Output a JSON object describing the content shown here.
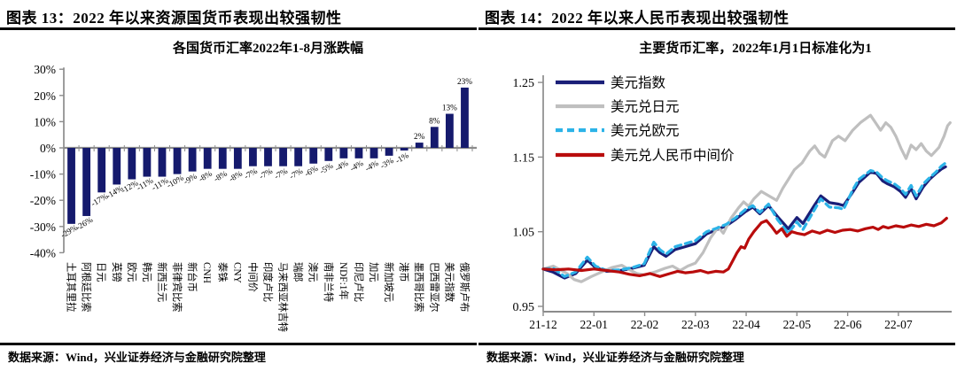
{
  "panels": [
    {
      "heading": "图表 13：2022 年以来资源国货币表现出较强韧性",
      "source": "数据来源：Wind，兴业证券经济与金融研究院整理"
    },
    {
      "heading": "图表 14：2022 年以来人民币表现出较强韧性",
      "source": "数据来源：Wind，兴业证券经济与金融研究院整理"
    }
  ],
  "chart_data": [
    {
      "type": "bar",
      "title": "各国货币汇率2022年1-8月涨跌幅",
      "unit": "%",
      "categories": [
        "土耳其里拉",
        "阿根廷比索",
        "日元",
        "英镑",
        "欧元",
        "韩元",
        "新西兰元",
        "菲律宾比索",
        "新台币",
        "CNH",
        "泰铢",
        "CNY",
        "中间价",
        "印度卢比",
        "马来西亚林吉特",
        "瑞郎",
        "澳元",
        "南非兰特",
        "NDF:1年",
        "印尼卢比",
        "加元",
        "新加坡元",
        "港币",
        "墨西哥比索",
        "巴西雷亚尔",
        "美元指数",
        "俄罗斯卢布"
      ],
      "values": [
        -29,
        -26,
        -17,
        -14,
        -12,
        -11,
        -11,
        -10,
        -9,
        -8,
        -8,
        -8,
        -7,
        -7,
        -7,
        -7,
        -6,
        -5,
        -4,
        -4,
        -4,
        -3,
        -1,
        2,
        8,
        13,
        23
      ],
      "ylim": [
        -40,
        30
      ],
      "yticks": [
        30,
        20,
        10,
        0,
        -10,
        -20,
        -30,
        -40
      ],
      "grid": false,
      "bar_color": "#151a6d",
      "axis_color": "#8c8c8c"
    },
    {
      "type": "line",
      "title": "主要货币汇率，2022年1月1日标准化为1",
      "x_tick_labels": [
        "21-12",
        "22-01",
        "22-02",
        "22-03",
        "22-04",
        "22-05",
        "22-06",
        "22-07"
      ],
      "x_unit": "months-since-2021-12",
      "x_range": [
        0,
        8.05
      ],
      "ylim": [
        0.95,
        1.25
      ],
      "yticks": [
        1.25,
        1.15,
        1.05,
        0.95
      ],
      "grid": false,
      "legend_position": "top-left",
      "axis_color": "#8c8c8c",
      "series": [
        {
          "name": "美元指数",
          "color": "#1a1f78",
          "style": "solid",
          "points": [
            [
              0,
              1.0
            ],
            [
              0.19,
              0.996
            ],
            [
              0.42,
              0.988
            ],
            [
              0.64,
              0.994
            ],
            [
              0.87,
              1.012
            ],
            [
              1.03,
              1.002
            ],
            [
              1.25,
              0.997
            ],
            [
              1.52,
              0.998
            ],
            [
              1.76,
              1.001
            ],
            [
              1.99,
              1.005
            ],
            [
              2.18,
              1.03
            ],
            [
              2.3,
              1.022
            ],
            [
              2.42,
              1.017
            ],
            [
              2.6,
              1.026
            ],
            [
              2.8,
              1.03
            ],
            [
              3.0,
              1.034
            ],
            [
              3.22,
              1.047
            ],
            [
              3.43,
              1.053
            ],
            [
              3.61,
              1.058
            ],
            [
              3.78,
              1.066
            ],
            [
              3.99,
              1.077
            ],
            [
              4.13,
              1.083
            ],
            [
              4.27,
              1.074
            ],
            [
              4.44,
              1.085
            ],
            [
              4.62,
              1.07
            ],
            [
              4.83,
              1.054
            ],
            [
              5.0,
              1.069
            ],
            [
              5.12,
              1.061
            ],
            [
              5.35,
              1.086
            ],
            [
              5.47,
              1.098
            ],
            [
              5.64,
              1.089
            ],
            [
              5.82,
              1.087
            ],
            [
              5.92,
              1.085
            ],
            [
              6.1,
              1.103
            ],
            [
              6.22,
              1.116
            ],
            [
              6.45,
              1.13
            ],
            [
              6.57,
              1.128
            ],
            [
              6.69,
              1.118
            ],
            [
              6.79,
              1.114
            ],
            [
              6.92,
              1.11
            ],
            [
              7.04,
              1.104
            ],
            [
              7.14,
              1.096
            ],
            [
              7.25,
              1.108
            ],
            [
              7.35,
              1.094
            ],
            [
              7.49,
              1.11
            ],
            [
              7.61,
              1.12
            ],
            [
              7.74,
              1.128
            ],
            [
              7.85,
              1.134
            ],
            [
              7.93,
              1.137
            ]
          ]
        },
        {
          "name": "美元兑日元",
          "color": "#bfbfbf",
          "style": "solid",
          "points": [
            [
              0,
              1.0
            ],
            [
              0.2,
              1.004
            ],
            [
              0.47,
              0.994
            ],
            [
              0.61,
              0.986
            ],
            [
              0.75,
              0.983
            ],
            [
              0.95,
              0.99
            ],
            [
              1.15,
              0.996
            ],
            [
              1.35,
              1.002
            ],
            [
              1.55,
              1.005
            ],
            [
              1.7,
              0.999
            ],
            [
              1.85,
              0.994
            ],
            [
              2.0,
              0.992
            ],
            [
              2.2,
              0.996
            ],
            [
              2.4,
              1.001
            ],
            [
              2.55,
              1.004
            ],
            [
              2.7,
              0.998
            ],
            [
              2.85,
              1.004
            ],
            [
              3.0,
              1.008
            ],
            [
              3.15,
              1.022
            ],
            [
              3.3,
              1.042
            ],
            [
              3.45,
              1.056
            ],
            [
              3.55,
              1.048
            ],
            [
              3.7,
              1.068
            ],
            [
              3.85,
              1.082
            ],
            [
              3.95,
              1.09
            ],
            [
              4.05,
              1.084
            ],
            [
              4.15,
              1.094
            ],
            [
              4.3,
              1.104
            ],
            [
              4.45,
              1.098
            ],
            [
              4.6,
              1.092
            ],
            [
              4.72,
              1.108
            ],
            [
              4.85,
              1.122
            ],
            [
              4.95,
              1.133
            ],
            [
              5.1,
              1.142
            ],
            [
              5.25,
              1.158
            ],
            [
              5.35,
              1.165
            ],
            [
              5.45,
              1.155
            ],
            [
              5.55,
              1.15
            ],
            [
              5.7,
              1.172
            ],
            [
              5.82,
              1.178
            ],
            [
              5.95,
              1.172
            ],
            [
              6.1,
              1.186
            ],
            [
              6.25,
              1.196
            ],
            [
              6.45,
              1.206
            ],
            [
              6.55,
              1.196
            ],
            [
              6.65,
              1.186
            ],
            [
              6.75,
              1.196
            ],
            [
              6.85,
              1.19
            ],
            [
              6.95,
              1.178
            ],
            [
              7.05,
              1.162
            ],
            [
              7.15,
              1.148
            ],
            [
              7.25,
              1.166
            ],
            [
              7.35,
              1.16
            ],
            [
              7.45,
              1.168
            ],
            [
              7.55,
              1.158
            ],
            [
              7.65,
              1.152
            ],
            [
              7.8,
              1.163
            ],
            [
              7.9,
              1.178
            ],
            [
              7.97,
              1.192
            ],
            [
              8.02,
              1.196
            ]
          ]
        },
        {
          "name": "美元兑欧元",
          "color": "#2cb3e8",
          "style": "dashed",
          "points": [
            [
              0,
              1.0
            ],
            [
              0.2,
              1.001
            ],
            [
              0.42,
              0.99
            ],
            [
              0.64,
              0.996
            ],
            [
              0.87,
              1.016
            ],
            [
              1.03,
              1.004
            ],
            [
              1.25,
              0.998
            ],
            [
              1.52,
              0.999
            ],
            [
              1.76,
              1.002
            ],
            [
              1.99,
              1.007
            ],
            [
              2.18,
              1.036
            ],
            [
              2.3,
              1.026
            ],
            [
              2.42,
              1.02
            ],
            [
              2.6,
              1.03
            ],
            [
              2.8,
              1.034
            ],
            [
              3.0,
              1.038
            ],
            [
              3.22,
              1.05
            ],
            [
              3.43,
              1.055
            ],
            [
              3.61,
              1.06
            ],
            [
              3.78,
              1.068
            ],
            [
              3.99,
              1.08
            ],
            [
              4.13,
              1.085
            ],
            [
              4.27,
              1.076
            ],
            [
              4.44,
              1.087
            ],
            [
              4.62,
              1.066
            ],
            [
              4.83,
              1.048
            ],
            [
              5.0,
              1.063
            ],
            [
              5.12,
              1.053
            ],
            [
              5.35,
              1.08
            ],
            [
              5.47,
              1.094
            ],
            [
              5.64,
              1.083
            ],
            [
              5.82,
              1.082
            ],
            [
              5.92,
              1.08
            ],
            [
              6.1,
              1.106
            ],
            [
              6.22,
              1.12
            ],
            [
              6.45,
              1.132
            ],
            [
              6.57,
              1.13
            ],
            [
              6.69,
              1.122
            ],
            [
              6.79,
              1.118
            ],
            [
              6.92,
              1.114
            ],
            [
              7.04,
              1.108
            ],
            [
              7.14,
              1.1
            ],
            [
              7.25,
              1.112
            ],
            [
              7.35,
              1.098
            ],
            [
              7.49,
              1.114
            ],
            [
              7.61,
              1.122
            ],
            [
              7.74,
              1.13
            ],
            [
              7.85,
              1.138
            ],
            [
              7.93,
              1.142
            ]
          ]
        },
        {
          "name": "美元兑人民币中间价",
          "color": "#b90c0c",
          "style": "solid",
          "points": [
            [
              0,
              1.0
            ],
            [
              0.25,
              0.999
            ],
            [
              0.5,
              1.0
            ],
            [
              0.75,
              0.998
            ],
            [
              1.0,
              1.0
            ],
            [
              1.25,
              0.998
            ],
            [
              1.5,
              0.996
            ],
            [
              1.7,
              0.993
            ],
            [
              1.9,
              0.991
            ],
            [
              2.1,
              0.994
            ],
            [
              2.3,
              0.99
            ],
            [
              2.5,
              0.994
            ],
            [
              2.65,
              0.997
            ],
            [
              2.8,
              0.995
            ],
            [
              2.95,
              0.996
            ],
            [
              3.1,
              0.998
            ],
            [
              3.25,
              0.995
            ],
            [
              3.4,
              0.997
            ],
            [
              3.55,
              0.996
            ],
            [
              3.65,
              1.0
            ],
            [
              3.75,
              1.013
            ],
            [
              3.82,
              1.022
            ],
            [
              3.9,
              1.03
            ],
            [
              3.97,
              1.028
            ],
            [
              4.05,
              1.04
            ],
            [
              4.15,
              1.05
            ],
            [
              4.3,
              1.062
            ],
            [
              4.4,
              1.065
            ],
            [
              4.5,
              1.057
            ],
            [
              4.6,
              1.048
            ],
            [
              4.7,
              1.054
            ],
            [
              4.8,
              1.044
            ],
            [
              4.9,
              1.05
            ],
            [
              5.0,
              1.048
            ],
            [
              5.15,
              1.046
            ],
            [
              5.3,
              1.051
            ],
            [
              5.45,
              1.048
            ],
            [
              5.6,
              1.052
            ],
            [
              5.75,
              1.049
            ],
            [
              5.9,
              1.052
            ],
            [
              6.05,
              1.053
            ],
            [
              6.2,
              1.051
            ],
            [
              6.35,
              1.054
            ],
            [
              6.5,
              1.056
            ],
            [
              6.6,
              1.053
            ],
            [
              6.7,
              1.057
            ],
            [
              6.8,
              1.055
            ],
            [
              6.95,
              1.058
            ],
            [
              7.1,
              1.056
            ],
            [
              7.25,
              1.059
            ],
            [
              7.4,
              1.057
            ],
            [
              7.55,
              1.06
            ],
            [
              7.7,
              1.058
            ],
            [
              7.85,
              1.062
            ],
            [
              7.95,
              1.068
            ]
          ]
        }
      ]
    }
  ]
}
